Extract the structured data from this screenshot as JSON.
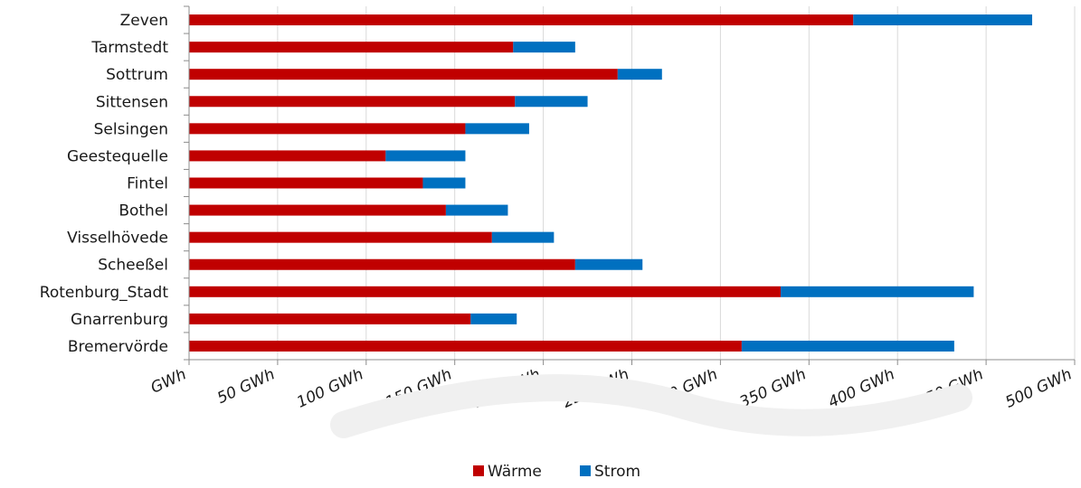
{
  "chart_data": {
    "type": "bar",
    "orientation": "horizontal",
    "stacked": true,
    "title": "",
    "xlabel": "",
    "ylabel": "",
    "categories": [
      "Zeven",
      "Tarmstedt",
      "Sottrum",
      "Sittensen",
      "Selsingen",
      "Geestequelle",
      "Fintel",
      "Bothel",
      "Visselhövede",
      "Scheeßel",
      "Rotenburg_Stadt",
      "Gnarrenburg",
      "Bremervörde"
    ],
    "series": [
      {
        "name": "Wärme",
        "color": "#C00000",
        "values": [
          375,
          183,
          242,
          184,
          156,
          111,
          132,
          145,
          171,
          218,
          334,
          159,
          312
        ]
      },
      {
        "name": "Strom",
        "color": "#0070C0",
        "values": [
          101,
          35,
          25,
          41,
          36,
          45,
          24,
          35,
          35,
          38,
          109,
          26,
          120
        ]
      }
    ],
    "xlim": [
      0,
      500
    ],
    "xticks": [
      0,
      50,
      100,
      150,
      200,
      250,
      300,
      350,
      400,
      450,
      500
    ],
    "xtick_labels": [
      "GWh",
      "50 GWh",
      "100 GWh",
      "150 GWh",
      "200 GWh",
      "250 GWh",
      "300 GWh",
      "350 GWh",
      "400 GWh",
      "450 GWh",
      "500 GWh"
    ],
    "grid": true,
    "legend_position": "bottom"
  }
}
